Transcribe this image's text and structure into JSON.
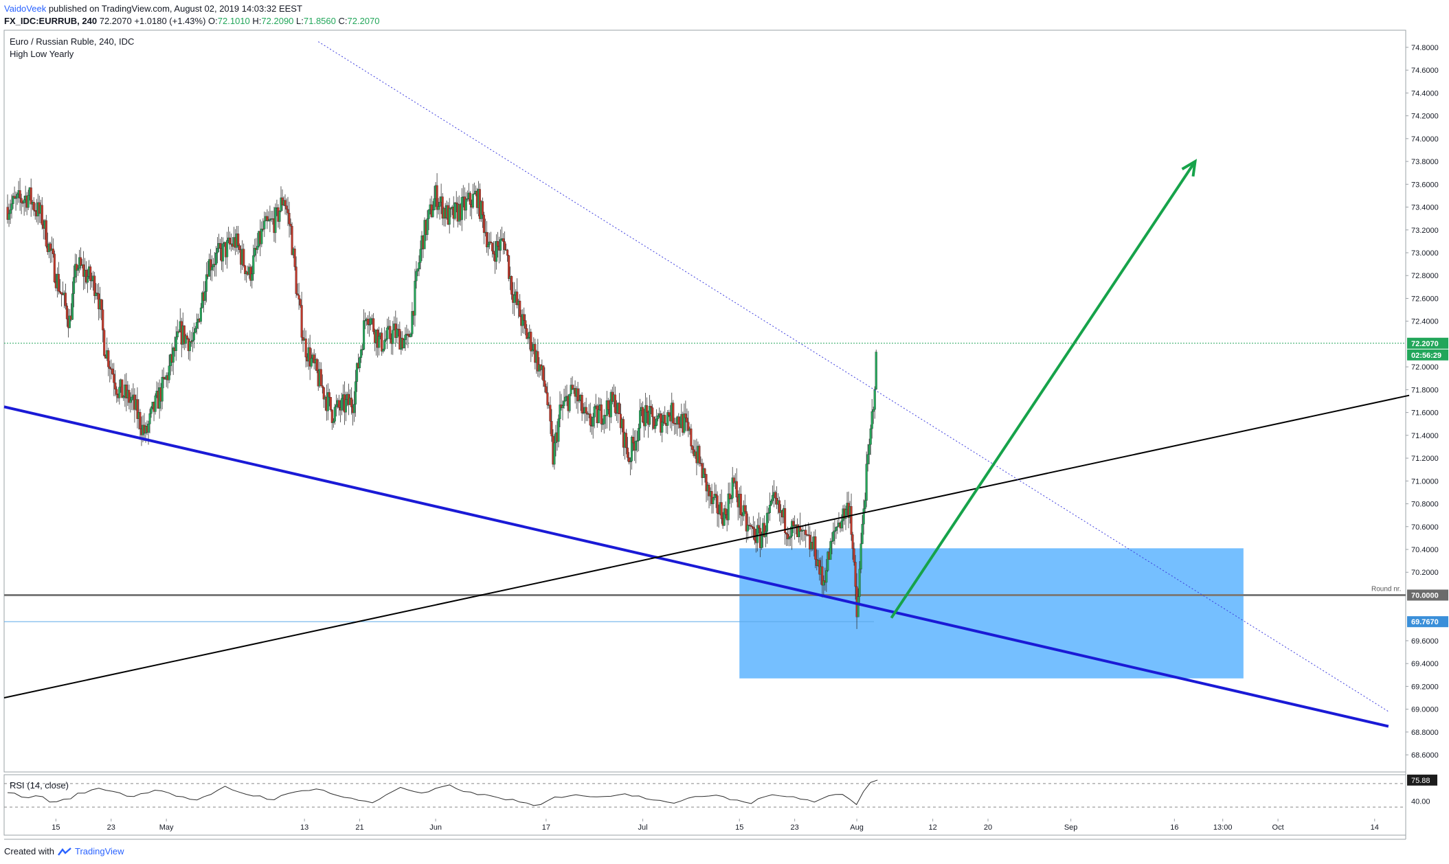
{
  "header": {
    "author": "VaidoVeek",
    "published": "published on TradingView.com, August 02, 2019 14:03:32 EEST",
    "symbol": "FX_IDC:EURRUB, 240",
    "last": "72.2070",
    "change": "+1.0180 (+1.43%)",
    "o_label": "O:",
    "o_val": "72.1010",
    "h_label": "H:",
    "h_val": "72.2090",
    "l_label": "L:",
    "l_val": "71.8560",
    "c_label": "C:",
    "c_val": "72.2070"
  },
  "footer": {
    "created": "Created with",
    "brand": "TradingView",
    "icon": "tradingview-logo-icon"
  },
  "chart_data": {
    "type": "candlestick",
    "title": "Euro / Russian Ruble, 240, IDC",
    "subtitle": "High Low Yearly",
    "ylim": [
      68.45,
      74.95
    ],
    "y_ticks": [
      "74.8000",
      "74.6000",
      "74.4000",
      "74.2000",
      "74.0000",
      "73.8000",
      "73.6000",
      "73.4000",
      "73.2000",
      "73.0000",
      "72.8000",
      "72.6000",
      "72.4000",
      "72.0000",
      "71.8000",
      "71.6000",
      "71.4000",
      "71.2000",
      "71.0000",
      "70.8000",
      "70.6000",
      "70.4000",
      "70.2000",
      "69.6000",
      "69.4000",
      "69.2000",
      "69.0000",
      "68.8000",
      "68.6000"
    ],
    "x_ticks": [
      {
        "label": "15",
        "day": 7
      },
      {
        "label": "23",
        "day": 15
      },
      {
        "label": "May",
        "day": 23
      },
      {
        "label": "13",
        "day": 43
      },
      {
        "label": "21",
        "day": 51
      },
      {
        "label": "Jun",
        "day": 62
      },
      {
        "label": "17",
        "day": 78
      },
      {
        "label": "Jul",
        "day": 92
      },
      {
        "label": "15",
        "day": 106
      },
      {
        "label": "23",
        "day": 114
      },
      {
        "label": "Aug",
        "day": 123
      },
      {
        "label": "12",
        "day": 134
      },
      {
        "label": "20",
        "day": 142
      },
      {
        "label": "Sep",
        "day": 154
      },
      {
        "label": "16",
        "day": 169
      },
      {
        "label": "13:00",
        "day": 176
      },
      {
        "label": "Oct",
        "day": 184
      },
      {
        "label": "14",
        "day": 198
      }
    ],
    "x_range_days": [
      -0.5,
      202.5
    ],
    "price_path": [
      [
        0,
        73.4
      ],
      [
        3,
        73.5
      ],
      [
        5,
        73.3
      ],
      [
        7,
        72.8
      ],
      [
        9,
        72.4
      ],
      [
        10,
        72.9
      ],
      [
        13,
        72.7
      ],
      [
        14,
        72.2
      ],
      [
        16,
        71.8
      ],
      [
        18,
        71.7
      ],
      [
        20,
        71.4
      ],
      [
        21,
        71.6
      ],
      [
        23,
        71.9
      ],
      [
        25,
        72.3
      ],
      [
        27,
        72.2
      ],
      [
        29,
        72.9
      ],
      [
        31,
        73.0
      ],
      [
        33,
        73.1
      ],
      [
        35,
        72.8
      ],
      [
        37,
        73.2
      ],
      [
        39,
        73.3
      ],
      [
        40,
        73.5
      ],
      [
        41,
        73.2
      ],
      [
        42,
        72.6
      ],
      [
        43,
        72.2
      ],
      [
        45,
        71.9
      ],
      [
        47,
        71.6
      ],
      [
        50,
        71.7
      ],
      [
        52,
        72.5
      ],
      [
        54,
        72.2
      ],
      [
        56,
        72.3
      ],
      [
        58,
        72.2
      ],
      [
        60,
        73.1
      ],
      [
        62,
        73.5
      ],
      [
        64,
        73.3
      ],
      [
        66,
        73.4
      ],
      [
        68,
        73.5
      ],
      [
        70,
        73.0
      ],
      [
        72,
        73.1
      ],
      [
        73,
        72.7
      ],
      [
        75,
        72.3
      ],
      [
        76,
        72.2
      ],
      [
        78,
        71.8
      ],
      [
        79,
        71.2
      ],
      [
        80,
        71.6
      ],
      [
        82,
        71.8
      ],
      [
        84,
        71.5
      ],
      [
        86,
        71.6
      ],
      [
        88,
        71.7
      ],
      [
        90,
        71.2
      ],
      [
        92,
        71.6
      ],
      [
        94,
        71.5
      ],
      [
        96,
        71.6
      ],
      [
        98,
        71.5
      ],
      [
        100,
        71.2
      ],
      [
        102,
        70.8
      ],
      [
        104,
        70.7
      ],
      [
        105,
        71.0
      ],
      [
        107,
        70.6
      ],
      [
        109,
        70.5
      ],
      [
        111,
        70.8
      ],
      [
        113,
        70.6
      ],
      [
        115,
        70.5
      ],
      [
        117,
        70.4
      ],
      [
        118,
        70.1
      ],
      [
        120,
        70.6
      ],
      [
        122,
        70.8
      ],
      [
        123,
        69.8
      ],
      [
        124,
        70.8
      ],
      [
        125,
        71.4
      ],
      [
        126,
        72.2
      ]
    ],
    "last_price": "72.2070",
    "countdown": "02:56:29",
    "round_label": "Round nr.",
    "round_price": "70.0000",
    "low_price": "69.7670",
    "support_zone": {
      "from_day": 106,
      "to_day": 179,
      "top": 70.41,
      "bottom": 69.27
    },
    "lines": [
      {
        "name": "descending-support-line",
        "color": "#1a1ad6",
        "from": [
          -0.5,
          71.65
        ],
        "to": [
          200,
          68.85
        ]
      },
      {
        "name": "ascending-trendline",
        "color": "#000000",
        "from": [
          -0.5,
          69.1
        ],
        "to": [
          203,
          71.75
        ]
      },
      {
        "name": "dotted-resistance-line",
        "color": "#3b3bde",
        "from": [
          45,
          74.85
        ],
        "to": [
          200,
          68.98
        ]
      }
    ],
    "arrow": {
      "color": "#16a34a",
      "from": [
        128,
        69.8
      ],
      "to": [
        172,
        73.8
      ]
    },
    "rsi": {
      "label": "RSI (14, close)",
      "ylim": [
        15,
        85
      ],
      "levels": [
        "75.88",
        "40.00"
      ],
      "level70": 70,
      "level30": 30,
      "values": [
        55,
        52,
        48,
        45,
        50,
        47,
        40,
        38,
        42,
        46,
        52,
        55,
        58,
        62,
        60,
        57,
        54,
        50,
        48,
        52,
        56,
        60,
        58,
        54,
        50,
        46,
        44,
        42,
        46,
        50,
        58,
        64,
        60,
        56,
        52,
        50,
        48,
        45,
        44,
        48,
        52,
        55,
        58,
        60,
        62,
        58,
        54,
        50,
        46,
        44,
        42,
        40,
        38,
        44,
        52,
        58,
        62,
        60,
        56,
        52,
        56,
        60,
        64,
        66,
        62,
        58,
        54,
        52,
        50,
        48,
        46,
        44,
        42,
        38,
        35,
        32,
        34,
        40,
        46,
        48,
        50,
        52,
        50,
        48,
        46,
        48,
        50,
        52,
        54,
        50,
        48,
        46,
        44,
        42,
        40,
        38,
        40,
        44,
        46,
        48,
        50,
        52,
        48,
        44,
        42,
        40,
        38,
        44,
        48,
        52,
        50,
        48,
        46,
        44,
        42,
        40,
        44,
        48,
        52,
        50,
        44,
        36,
        56,
        70,
        75.88
      ]
    }
  }
}
